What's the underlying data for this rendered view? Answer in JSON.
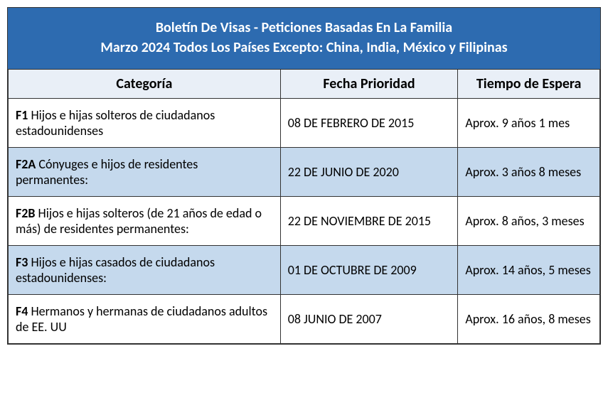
{
  "title_line1": "Boletín De Visas - Peticiones Basadas En La Familia",
  "title_line2": "Marzo 2024 Todos Los Países Excepto: China, India, México y Filipinas",
  "columns": {
    "category": "Categoría",
    "priority_date": "Fecha Prioridad",
    "wait_time": "Tiempo de Espera"
  },
  "column_widths_pct": [
    46,
    30,
    24
  ],
  "colors": {
    "header_bg": "#2d6bb0",
    "header_text": "#ffffff",
    "th_bg": "#e9eff7",
    "alt_row_bg": "#c5d9ed",
    "border": "#333333",
    "body_bg": "#ffffff",
    "text": "#000000"
  },
  "typography": {
    "font_family": "Calibri",
    "header_fontsize_pt": 15,
    "th_fontsize_pt": 15,
    "td_fontsize_pt": 13,
    "header_weight": "bold",
    "th_weight": "bold",
    "code_weight": "bold"
  },
  "rows": [
    {
      "code": "F1",
      "desc": " Hijos e hijas solteros de ciudadanos estadounidenses",
      "priority_date": "08 DE FEBRERO DE 2015",
      "wait_time": "Aprox. 9 años 1 mes",
      "alt": false
    },
    {
      "code": "F2A",
      "desc": " Cónyuges e hijos de residentes permanentes:",
      "priority_date": "22 DE JUNIO DE 2020",
      "wait_time": "Aprox. 3 años 8 meses",
      "alt": true
    },
    {
      "code": "F2B",
      "desc": " Hijos e hijas solteros (de 21 años de edad o más) de residentes permanentes:",
      "priority_date": "22 DE NOVIEMBRE DE 2015",
      "wait_time": "Aprox. 8 años, 3 meses",
      "alt": false
    },
    {
      "code": "F3",
      "desc": " Hijos e hijas casados de ciudadanos estadounidenses:",
      "priority_date": "01 DE OCTUBRE DE 2009",
      "wait_time": "Aprox. 14 años, 5 meses",
      "alt": true
    },
    {
      "code": "F4",
      "desc": " Hermanos y hermanas de ciudadanos adultos de EE. UU",
      "priority_date": "08 JUNIO DE 2007",
      "wait_time": "Aprox. 16 años, 8 meses",
      "alt": false
    }
  ]
}
